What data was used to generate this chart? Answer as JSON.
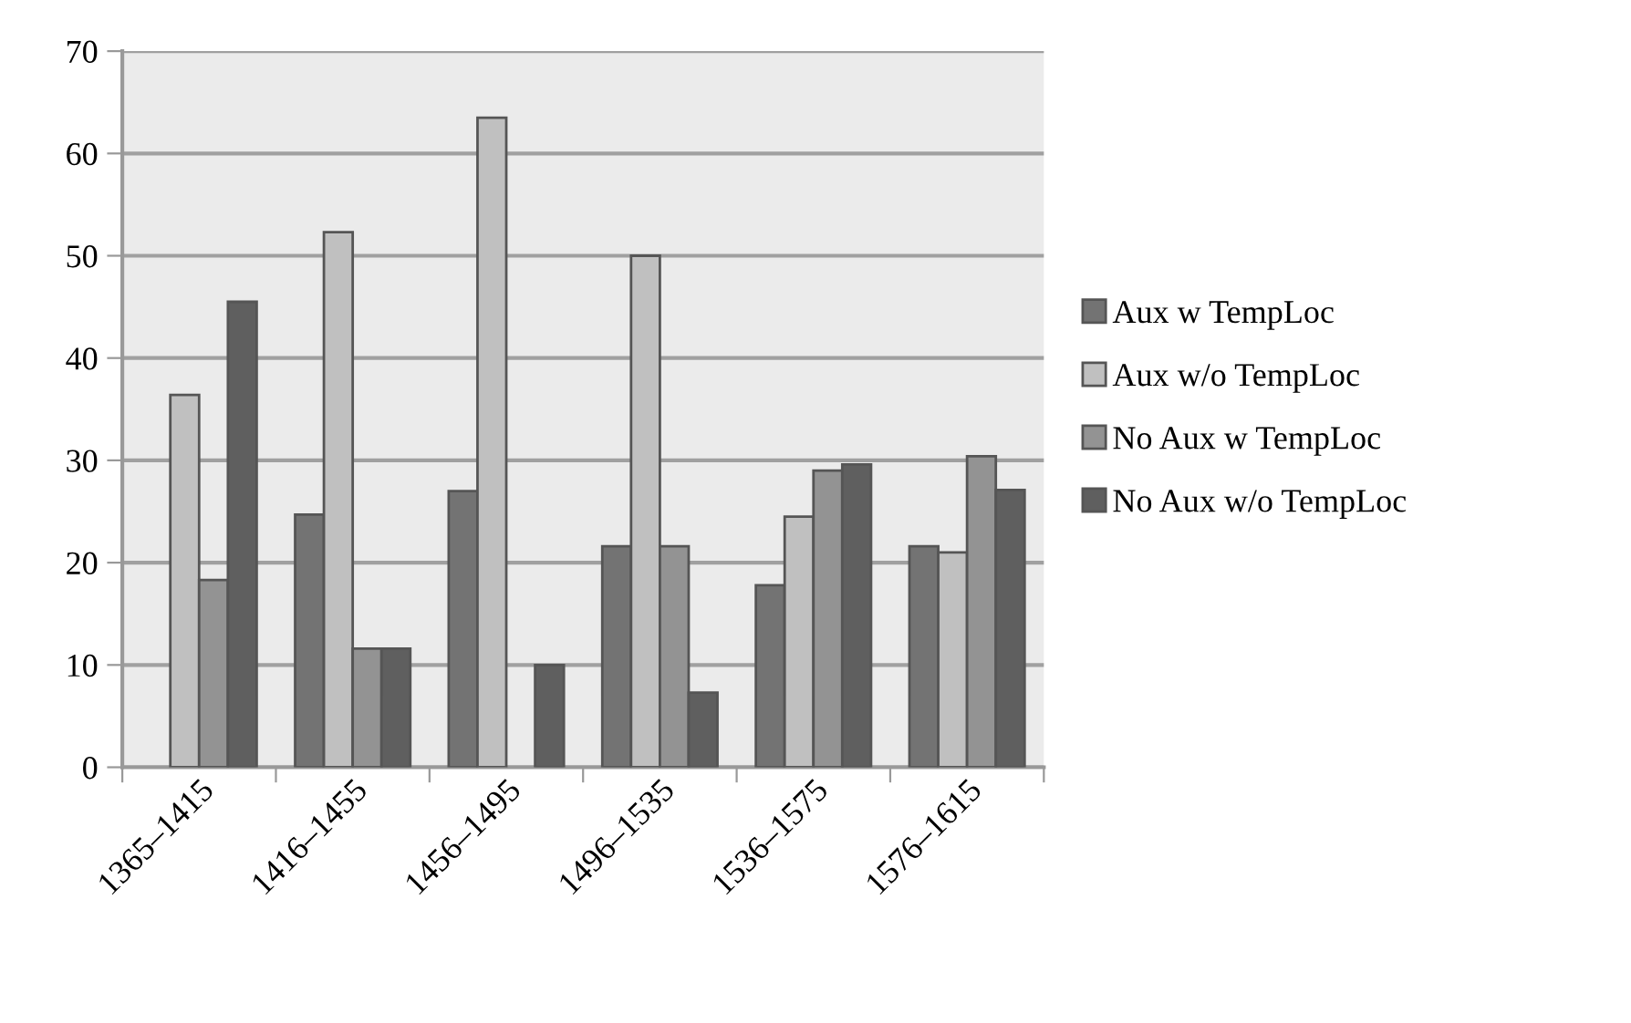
{
  "chart_data": {
    "type": "bar",
    "categories": [
      "1365–1415",
      "1416–1455",
      "1456–1495",
      "1496–1535",
      "1536–1575",
      "1576–1615"
    ],
    "series": [
      {
        "name": "Aux w TempLoc",
        "color": "#737373",
        "values": [
          0,
          24.7,
          27,
          21.6,
          17.8,
          21.6
        ]
      },
      {
        "name": "Aux w/o TempLoc",
        "color": "#c0c0c0",
        "values": [
          36.4,
          52.3,
          63.5,
          50,
          24.5,
          21
        ]
      },
      {
        "name": "No Aux w TempLoc",
        "color": "#939393",
        "values": [
          18.3,
          11.6,
          0,
          21.6,
          29,
          30.4
        ]
      },
      {
        "name": "No Aux w/o TempLoc",
        "color": "#5f5f5f",
        "values": [
          45.5,
          11.6,
          10,
          7.3,
          29.6,
          27.1
        ]
      }
    ],
    "ylim": [
      0,
      70
    ],
    "yticks": [
      0,
      10,
      20,
      30,
      40,
      50,
      60,
      70
    ],
    "grid": "y",
    "legend": "right"
  }
}
